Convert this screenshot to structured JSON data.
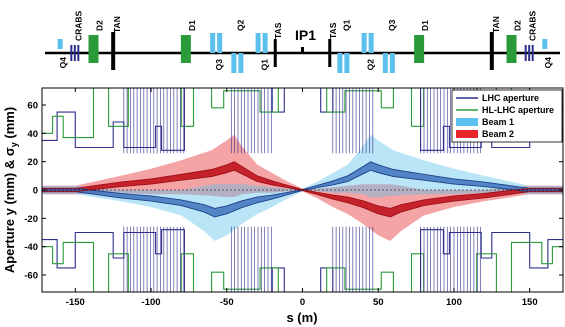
{
  "chart_data": {
    "type": "line",
    "xlabel": "s (m)",
    "ylabel": "Aperture y (mm)  &  σ",
    "ylabel_sub": "y",
    "ylabel_unit": " (mm)",
    "xlim": [
      -172,
      172
    ],
    "ylim": [
      -72,
      72
    ],
    "x_ticks": [
      -150,
      -100,
      -50,
      0,
      50,
      100,
      150
    ],
    "y_ticks": [
      -60,
      -40,
      -20,
      0,
      20,
      40,
      60
    ],
    "grid": false,
    "legend_position": "top-right",
    "legend": [
      {
        "label": "LHC aperture",
        "kind": "line",
        "color": "#2e2e8c"
      },
      {
        "label": "HL-LHC aperture",
        "kind": "line",
        "color": "#2a9a3a"
      },
      {
        "label": "Beam 1",
        "kind": "patch",
        "color": "#5bc0eb"
      },
      {
        "label": "Beam 2",
        "kind": "patch",
        "color": "#e6262c"
      }
    ],
    "series": [
      {
        "name": "Beam 1",
        "color": "#5bc0eb",
        "core_color": "#2f64b4",
        "x": [
          -172,
          -150,
          -120,
          -100,
          -80,
          -65,
          -58,
          -50,
          -40,
          -30,
          -20,
          -10,
          0,
          10,
          20,
          30,
          40,
          45,
          50,
          60,
          80,
          100,
          120,
          150,
          172
        ],
        "center": [
          0,
          0,
          -4,
          -6,
          -9,
          -13,
          -16,
          -14,
          -10,
          -7,
          -5,
          -2.5,
          0,
          2.5,
          5,
          8,
          14,
          17,
          15,
          12,
          9,
          6,
          4,
          0,
          0
        ],
        "core_half": [
          1.2,
          1.2,
          1.6,
          1.8,
          2.0,
          2.6,
          3.0,
          2.8,
          2.4,
          2.0,
          1.4,
          0.8,
          0.3,
          0.8,
          1.4,
          2.0,
          2.6,
          3.0,
          2.8,
          2.5,
          2.1,
          1.8,
          1.6,
          1.2,
          1.2
        ],
        "envelope_half": [
          3,
          3,
          4,
          6,
          9,
          16,
          20,
          18,
          14,
          10,
          7,
          3.5,
          1,
          3.5,
          7,
          10,
          17,
          22,
          20,
          16,
          12,
          9,
          6,
          3,
          3
        ]
      },
      {
        "name": "Beam 2",
        "color": "#e6262c",
        "core_color": "#c0141e",
        "x": [
          -172,
          -150,
          -120,
          -100,
          -80,
          -60,
          -50,
          -45,
          -40,
          -30,
          -20,
          -10,
          0,
          10,
          20,
          30,
          40,
          50,
          58,
          65,
          80,
          100,
          120,
          150,
          172
        ],
        "center": [
          0,
          0,
          4,
          6,
          9,
          12,
          15,
          17,
          14,
          8,
          5,
          2.5,
          0,
          -2.5,
          -5,
          -7,
          -10,
          -14,
          -16,
          -13,
          -9,
          -6,
          -4,
          0,
          0
        ],
        "core_half": [
          1.2,
          1.2,
          1.6,
          1.8,
          2.1,
          2.5,
          2.8,
          3.0,
          2.6,
          2.0,
          1.4,
          0.8,
          0.3,
          0.8,
          1.4,
          2.0,
          2.4,
          2.8,
          3.0,
          2.6,
          2.0,
          1.8,
          1.6,
          1.2,
          1.2
        ],
        "envelope_half": [
          3,
          3,
          6,
          9,
          12,
          16,
          20,
          22,
          17,
          10,
          7,
          3.5,
          1,
          3.5,
          7,
          10,
          14,
          18,
          20,
          16,
          9,
          6,
          4,
          3,
          3
        ]
      },
      {
        "name": "LHC aperture",
        "color": "#2e2e8c",
        "upper": [
          [
            -172,
            35
          ],
          [
            -162,
            35
          ],
          [
            -162,
            55
          ],
          [
            -150,
            55
          ],
          [
            -150,
            30
          ],
          [
            -125,
            30
          ],
          [
            -125,
            48
          ],
          [
            -118,
            48
          ],
          [
            -118,
            30
          ],
          [
            -97,
            30
          ],
          [
            -97,
            45
          ],
          [
            -93,
            45
          ],
          [
            -93,
            28
          ],
          [
            -78,
            28
          ],
          [
            -78,
            72
          ],
          [
            -20,
            72
          ],
          [
            -20,
            55
          ],
          [
            -12,
            55
          ],
          [
            -12,
            72
          ],
          [
            12,
            72
          ],
          [
            12,
            55
          ],
          [
            20,
            55
          ],
          [
            20,
            72
          ],
          [
            78,
            72
          ],
          [
            78,
            28
          ],
          [
            93,
            28
          ],
          [
            93,
            45
          ],
          [
            97,
            45
          ],
          [
            97,
            30
          ],
          [
            118,
            30
          ],
          [
            118,
            48
          ],
          [
            125,
            48
          ],
          [
            125,
            30
          ],
          [
            150,
            30
          ],
          [
            150,
            55
          ],
          [
            162,
            55
          ],
          [
            162,
            35
          ],
          [
            172,
            35
          ]
        ],
        "note": "lower aperture is the mirror image (y → -y)"
      },
      {
        "name": "HL-LHC aperture",
        "color": "#2a9a3a",
        "upper": [
          [
            -172,
            40
          ],
          [
            -165,
            40
          ],
          [
            -165,
            52
          ],
          [
            -158,
            52
          ],
          [
            -158,
            37
          ],
          [
            -138,
            37
          ],
          [
            -138,
            72
          ],
          [
            -128,
            72
          ],
          [
            -128,
            45
          ],
          [
            -115,
            45
          ],
          [
            -115,
            72
          ],
          [
            -80,
            72
          ],
          [
            -80,
            45
          ],
          [
            -72,
            45
          ],
          [
            -72,
            72
          ],
          [
            -60,
            72
          ],
          [
            -60,
            58
          ],
          [
            -52,
            58
          ],
          [
            -52,
            70
          ],
          [
            -28,
            70
          ],
          [
            -28,
            55
          ],
          [
            -16,
            55
          ],
          [
            -16,
            72
          ],
          [
            16,
            72
          ],
          [
            16,
            55
          ],
          [
            28,
            55
          ],
          [
            28,
            70
          ],
          [
            52,
            70
          ],
          [
            52,
            58
          ],
          [
            60,
            58
          ],
          [
            60,
            72
          ],
          [
            72,
            72
          ],
          [
            72,
            45
          ],
          [
            80,
            45
          ],
          [
            80,
            72
          ],
          [
            115,
            72
          ],
          [
            115,
            45
          ],
          [
            128,
            45
          ],
          [
            128,
            72
          ],
          [
            138,
            72
          ],
          [
            138,
            37
          ],
          [
            158,
            37
          ],
          [
            158,
            52
          ],
          [
            165,
            52
          ],
          [
            165,
            40
          ],
          [
            172,
            40
          ]
        ],
        "note": "lower aperture is the mirror image (y → -y)"
      }
    ]
  },
  "layout_elements": {
    "ip_label": "IP1",
    "beamline_color": "#000000",
    "elements": [
      {
        "label": "Q4",
        "s": -160,
        "kind": "small",
        "color": "#5bc0eb",
        "label_pos": "below"
      },
      {
        "label": "CRABS",
        "s": -150,
        "kind": "crab",
        "color": "#2e2e8c",
        "label_pos": "above"
      },
      {
        "label": "D2",
        "s": -138,
        "kind": "dipole",
        "color": "#2a9a3a",
        "label_pos": "above"
      },
      {
        "label": "TAN",
        "s": -125,
        "kind": "absorber",
        "color": "#000000",
        "label_pos": "above"
      },
      {
        "label": "D1",
        "s": -77,
        "kind": "dipole",
        "color": "#2a9a3a",
        "label_pos": "above"
      },
      {
        "label": "Q3",
        "s": -57,
        "kind": "quad-up",
        "color": "#5bc0eb",
        "label_pos": "below"
      },
      {
        "label": "Q2",
        "s": -43,
        "kind": "quad-down",
        "color": "#5bc0eb",
        "label_pos": "below"
      },
      {
        "label": "Q1",
        "s": -27,
        "kind": "quad-up",
        "color": "#5bc0eb",
        "label_pos": "below"
      },
      {
        "label": "TAS",
        "s": -18,
        "kind": "absorber-small",
        "color": "#000000",
        "label_pos": "above"
      },
      {
        "label": "TAS",
        "s": 18,
        "kind": "absorber-small",
        "color": "#000000",
        "label_pos": "above"
      },
      {
        "label": "Q1",
        "s": 27,
        "kind": "quad-down",
        "color": "#5bc0eb",
        "label_pos": "below"
      },
      {
        "label": "Q2",
        "s": 43,
        "kind": "quad-up",
        "color": "#5bc0eb",
        "label_pos": "below"
      },
      {
        "label": "Q3",
        "s": 57,
        "kind": "quad-down",
        "color": "#5bc0eb",
        "label_pos": "below"
      },
      {
        "label": "D1",
        "s": 77,
        "kind": "dipole",
        "color": "#2a9a3a",
        "label_pos": "above"
      },
      {
        "label": "TAN",
        "s": 125,
        "kind": "absorber",
        "color": "#000000",
        "label_pos": "above"
      },
      {
        "label": "D2",
        "s": 138,
        "kind": "dipole",
        "color": "#2a9a3a",
        "label_pos": "above"
      },
      {
        "label": "CRABS",
        "s": 150,
        "kind": "crab",
        "color": "#2e2e8c",
        "label_pos": "above"
      },
      {
        "label": "Q4",
        "s": 160,
        "kind": "small",
        "color": "#5bc0eb",
        "label_pos": "below"
      }
    ]
  }
}
